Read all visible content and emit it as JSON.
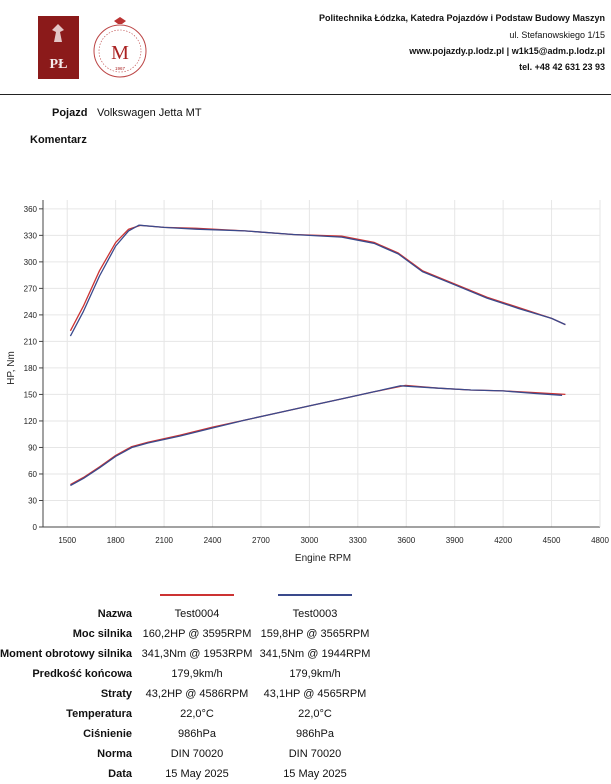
{
  "header": {
    "institution": "Politechnika Łódzka, Katedra Pojazdów i Podstaw Budowy Maszyn",
    "address": "ul. Stefanowskiego 1/15",
    "contact": "www.pojazdy.p.lodz.pl | w1k15@adm.p.lodz.pl",
    "phone": "tel. +48 42 631 23 93",
    "logo1_text": "PŁ",
    "logo2_text": "M",
    "logo2_year": "1967"
  },
  "vehicle": {
    "label": "Pojazd",
    "value": "Volkswagen Jetta MT"
  },
  "comment": {
    "label": "Komentarz",
    "value": ""
  },
  "colors": {
    "test0004": "#cc3333",
    "test0003": "#3a4a8c"
  },
  "chart_data": {
    "type": "line",
    "xlabel": "Engine RPM",
    "ylabel": "HP, Nm",
    "xlim": [
      1350,
      4800
    ],
    "ylim": [
      0,
      370
    ],
    "xticks": [
      1500,
      1800,
      2100,
      2400,
      2700,
      3000,
      3300,
      3600,
      3900,
      4200,
      4500,
      4800
    ],
    "yticks": [
      0,
      30,
      60,
      90,
      120,
      150,
      180,
      210,
      240,
      270,
      300,
      330,
      360
    ],
    "grid": true,
    "series": [
      {
        "name": "Test0004",
        "quantity": "torque",
        "color": "#cc3333",
        "x": [
          1520,
          1600,
          1700,
          1800,
          1880,
          1953,
          2100,
          2300,
          2600,
          2900,
          3200,
          3400,
          3550,
          3700,
          3900,
          4100,
          4300,
          4500,
          4586
        ],
        "y": [
          222,
          250,
          290,
          322,
          337,
          341.3,
          339,
          338,
          335,
          331,
          329,
          322,
          310,
          290,
          275,
          260,
          248,
          236,
          229
        ]
      },
      {
        "name": "Test0003",
        "quantity": "torque",
        "color": "#3a4a8c",
        "x": [
          1520,
          1600,
          1700,
          1800,
          1880,
          1944,
          2100,
          2300,
          2600,
          2900,
          3200,
          3400,
          3550,
          3700,
          3900,
          4100,
          4300,
          4500,
          4586
        ],
        "y": [
          216,
          244,
          284,
          318,
          335,
          341.5,
          339,
          337,
          335,
          331,
          328,
          321,
          309,
          289,
          274,
          259,
          247,
          236,
          229
        ]
      },
      {
        "name": "Test0004",
        "quantity": "power",
        "color": "#cc3333",
        "x": [
          1520,
          1600,
          1700,
          1800,
          1900,
          2000,
          2200,
          2400,
          2600,
          2800,
          3000,
          3200,
          3400,
          3595,
          3800,
          4000,
          4200,
          4400,
          4586
        ],
        "y": [
          48,
          56,
          68,
          81,
          91,
          96,
          104,
          113,
          121,
          129,
          137,
          145,
          153,
          160.2,
          157,
          155,
          154,
          152,
          150
        ]
      },
      {
        "name": "Test0003",
        "quantity": "power",
        "color": "#3a4a8c",
        "x": [
          1520,
          1600,
          1700,
          1800,
          1900,
          2000,
          2200,
          2400,
          2600,
          2800,
          3000,
          3200,
          3400,
          3565,
          3800,
          4000,
          4200,
          4400,
          4565
        ],
        "y": [
          47,
          55,
          67,
          80,
          90,
          95,
          103,
          112,
          121,
          129,
          137,
          145,
          153,
          159.8,
          157,
          155,
          154,
          151,
          149
        ]
      }
    ]
  },
  "results": {
    "columns": [
      "Test0004",
      "Test0003"
    ],
    "rows": [
      {
        "label": "Nazwa",
        "values": [
          "Test0004",
          "Test0003"
        ]
      },
      {
        "label": "Moc silnika",
        "values": [
          "160,2HP @ 3595RPM",
          "159,8HP @ 3565RPM"
        ]
      },
      {
        "label": "Moment obrotowy silnika",
        "values": [
          "341,3Nm @ 1953RPM",
          "341,5Nm @ 1944RPM"
        ]
      },
      {
        "label": "Predkość końcowa",
        "values": [
          "179,9km/h",
          "179,9km/h"
        ]
      },
      {
        "label": "Straty",
        "values": [
          "43,2HP @ 4586RPM",
          "43,1HP @ 4565RPM"
        ]
      },
      {
        "label": "Temperatura",
        "values": [
          "22,0°C",
          "22,0°C"
        ]
      },
      {
        "label": "Ciśnienie",
        "values": [
          "986hPa",
          "986hPa"
        ]
      },
      {
        "label": "Norma",
        "values": [
          "DIN 70020",
          "DIN 70020"
        ]
      },
      {
        "label": "Data",
        "values": [
          "15 May 2025",
          "15 May 2025"
        ]
      }
    ]
  }
}
